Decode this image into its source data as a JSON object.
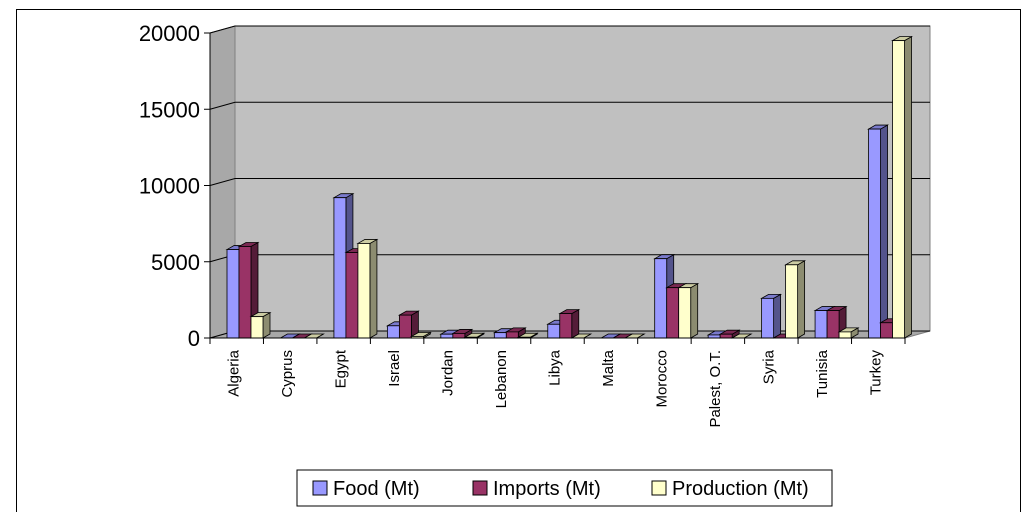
{
  "chart_data": {
    "type": "bar",
    "style": "3d-clustered-column",
    "categories": [
      "Algeria",
      "Cyprus",
      "Egypt",
      "Israel",
      "Jordan",
      "Lebanon",
      "Libya",
      "Malta",
      "Morocco",
      "Palest, O.T.",
      "Syria",
      "Tunisia",
      "Turkey"
    ],
    "series": [
      {
        "name": "Food (Mt)",
        "color": "#9999ff",
        "values": [
          5800,
          0,
          9200,
          800,
          250,
          350,
          900,
          0,
          5200,
          200,
          2600,
          1800,
          13700
        ]
      },
      {
        "name": "Imports (Mt)",
        "color": "#993366",
        "values": [
          6000,
          0,
          5600,
          1500,
          300,
          400,
          1600,
          0,
          3300,
          250,
          0,
          1800,
          1000
        ]
      },
      {
        "name": "Production (Mt)",
        "color": "#ffffcc",
        "values": [
          1400,
          0,
          6200,
          100,
          50,
          50,
          0,
          0,
          3300,
          0,
          4800,
          400,
          19500
        ]
      }
    ],
    "ylim": [
      0,
      20000
    ],
    "yticks": [
      "0",
      "5000",
      "10000",
      "15000",
      "20000"
    ],
    "grid": true,
    "legend_position": "bottom",
    "wall_color": "#c0c0c0"
  }
}
